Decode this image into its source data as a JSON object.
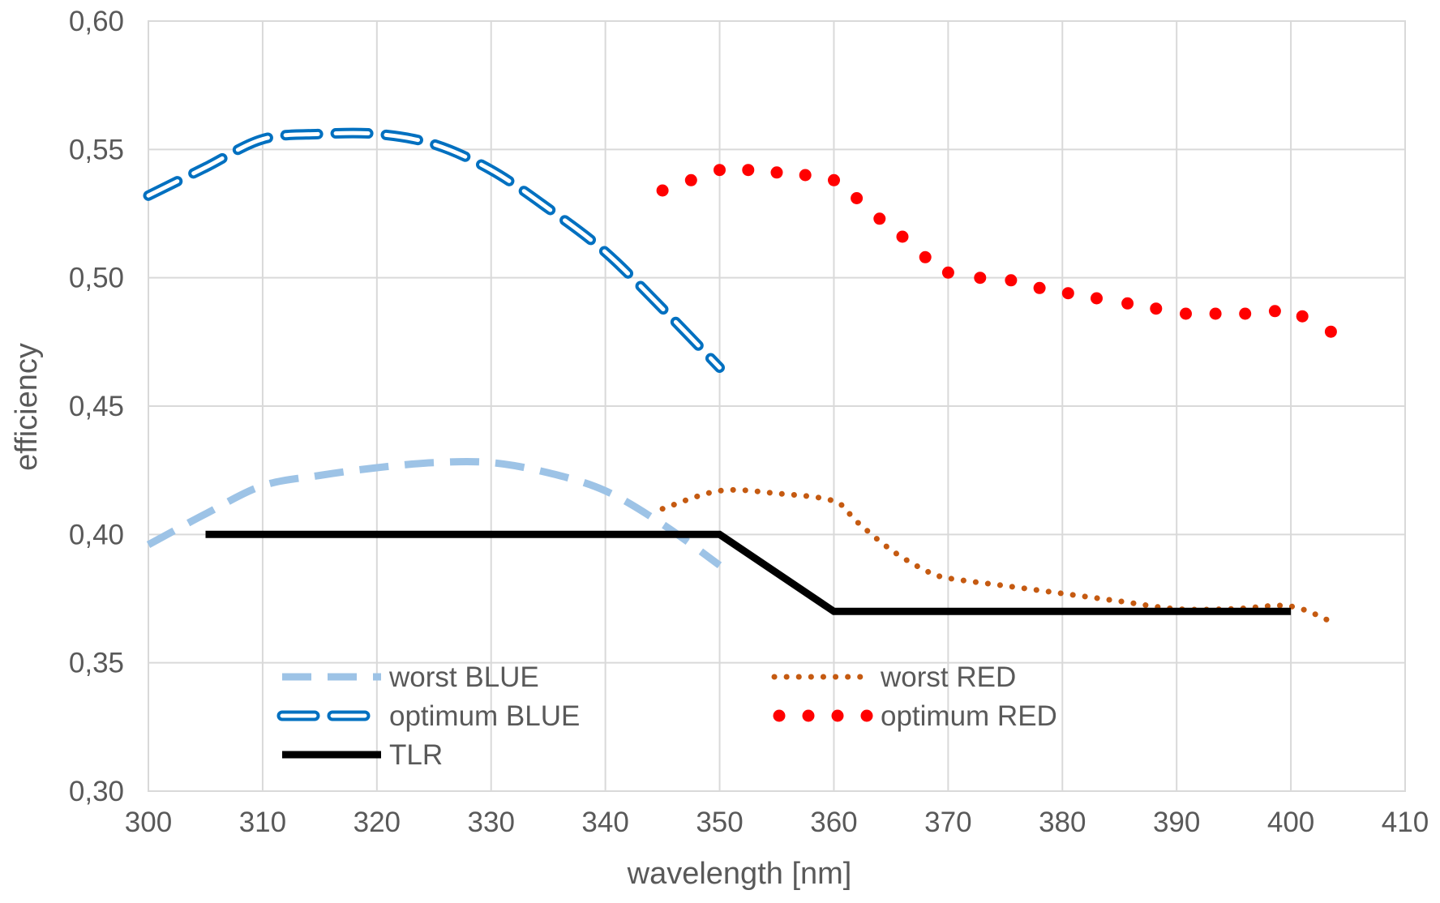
{
  "chart_data": {
    "type": "line",
    "title": "",
    "xlabel": "wavelength [nm]",
    "ylabel": "efficiency",
    "xlim": [
      300,
      410
    ],
    "ylim": [
      0.3,
      0.6
    ],
    "grid": true,
    "x_ticks": [
      300,
      310,
      320,
      330,
      340,
      350,
      360,
      370,
      380,
      390,
      400,
      410
    ],
    "x_tick_labels": [
      "300",
      "310",
      "320",
      "330",
      "340",
      "350",
      "360",
      "370",
      "380",
      "390",
      "400",
      "410"
    ],
    "y_ticks": [
      0.3,
      0.35,
      0.4,
      0.45,
      0.5,
      0.55,
      0.6
    ],
    "y_tick_labels": [
      "0,30",
      "0,35",
      "0,40",
      "0,45",
      "0,50",
      "0,55",
      "0,60"
    ],
    "legend_placement": "bottom",
    "series": [
      {
        "name": "worst BLUE",
        "color": "#9DC3E6",
        "style": "dashed",
        "x": [
          300,
          305,
          310,
          315,
          320,
          325,
          330,
          335,
          340,
          345,
          350
        ],
        "y": [
          0.396,
          0.408,
          0.419,
          0.423,
          0.426,
          0.428,
          0.428,
          0.424,
          0.417,
          0.404,
          0.388
        ]
      },
      {
        "name": "optimum BLUE",
        "color": "#0070C0",
        "style": "hollow-dashed",
        "x": [
          300,
          305,
          310,
          315,
          320,
          325,
          330,
          335,
          340,
          345,
          350
        ],
        "y": [
          0.532,
          0.543,
          0.554,
          0.556,
          0.556,
          0.552,
          0.542,
          0.527,
          0.51,
          0.488,
          0.465
        ]
      },
      {
        "name": "worst RED",
        "color": "#C55A11",
        "style": "dotted",
        "x": [
          345,
          350,
          355,
          360,
          362,
          365,
          368,
          370,
          375,
          380,
          385,
          390,
          395,
          400,
          404
        ],
        "y": [
          0.41,
          0.417,
          0.416,
          0.413,
          0.405,
          0.394,
          0.386,
          0.383,
          0.38,
          0.377,
          0.374,
          0.371,
          0.371,
          0.372,
          0.365
        ]
      },
      {
        "name": "optimum RED",
        "color": "#FF0000",
        "style": "round-dots",
        "x": [
          345,
          347.5,
          350,
          352.5,
          355,
          357.5,
          360,
          362,
          364,
          366,
          368,
          370,
          372.8,
          375.5,
          378,
          380.5,
          383,
          385.7,
          388.2,
          390.8,
          393.4,
          396,
          398.6,
          401,
          403.5
        ],
        "y": [
          0.534,
          0.538,
          0.542,
          0.542,
          0.541,
          0.54,
          0.538,
          0.531,
          0.523,
          0.516,
          0.508,
          0.502,
          0.5,
          0.499,
          0.496,
          0.494,
          0.492,
          0.49,
          0.488,
          0.486,
          0.486,
          0.486,
          0.487,
          0.485,
          0.479
        ]
      },
      {
        "name": "TLR",
        "color": "#000000",
        "style": "solid",
        "x": [
          305,
          350,
          360,
          400
        ],
        "y": [
          0.4,
          0.4,
          0.37,
          0.37
        ]
      }
    ]
  }
}
